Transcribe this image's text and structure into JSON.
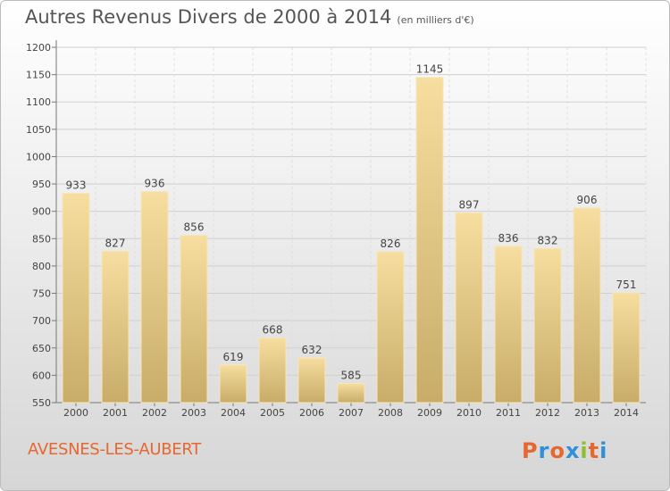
{
  "title": "Autres Revenus Divers de 2000 à 2014",
  "subtitle": "(en milliers d'€)",
  "city": "AVESNES-LES-AUBERT",
  "brand": {
    "letters": [
      "P",
      "r",
      "o",
      "x",
      "i",
      "t",
      "i"
    ],
    "colors": [
      "#e8662f",
      "#2f8fd8",
      "#e8662f",
      "#2f8fd8",
      "#8bbf2f",
      "#e8662f",
      "#2f8fd8"
    ]
  },
  "chart_data": {
    "type": "bar",
    "title": "Autres Revenus Divers de 2000 à 2014",
    "subtitle": "(en milliers d'€)",
    "categories": [
      "2000",
      "2001",
      "2002",
      "2003",
      "2004",
      "2005",
      "2006",
      "2007",
      "2008",
      "2009",
      "2010",
      "2011",
      "2012",
      "2013",
      "2014"
    ],
    "values": [
      933,
      827,
      936,
      856,
      619,
      668,
      632,
      585,
      826,
      1145,
      897,
      836,
      832,
      906,
      751
    ],
    "data_labels": [
      "933",
      "827",
      "936",
      "856",
      "619",
      "668",
      "632",
      "585",
      "826",
      "1145",
      "897",
      "836",
      "832",
      "906",
      "751"
    ],
    "y_ticks": [
      550,
      600,
      650,
      700,
      750,
      800,
      850,
      900,
      950,
      1000,
      1050,
      1100,
      1150,
      1200
    ],
    "y_tick_labels": [
      "550",
      "600",
      "650",
      "700",
      "750",
      "800",
      "850",
      "900",
      "950",
      "1000",
      "1050",
      "1100",
      "1150",
      "1200"
    ],
    "ylim": [
      550,
      1200
    ],
    "grid": true,
    "bar_color": "#ebc97e"
  }
}
